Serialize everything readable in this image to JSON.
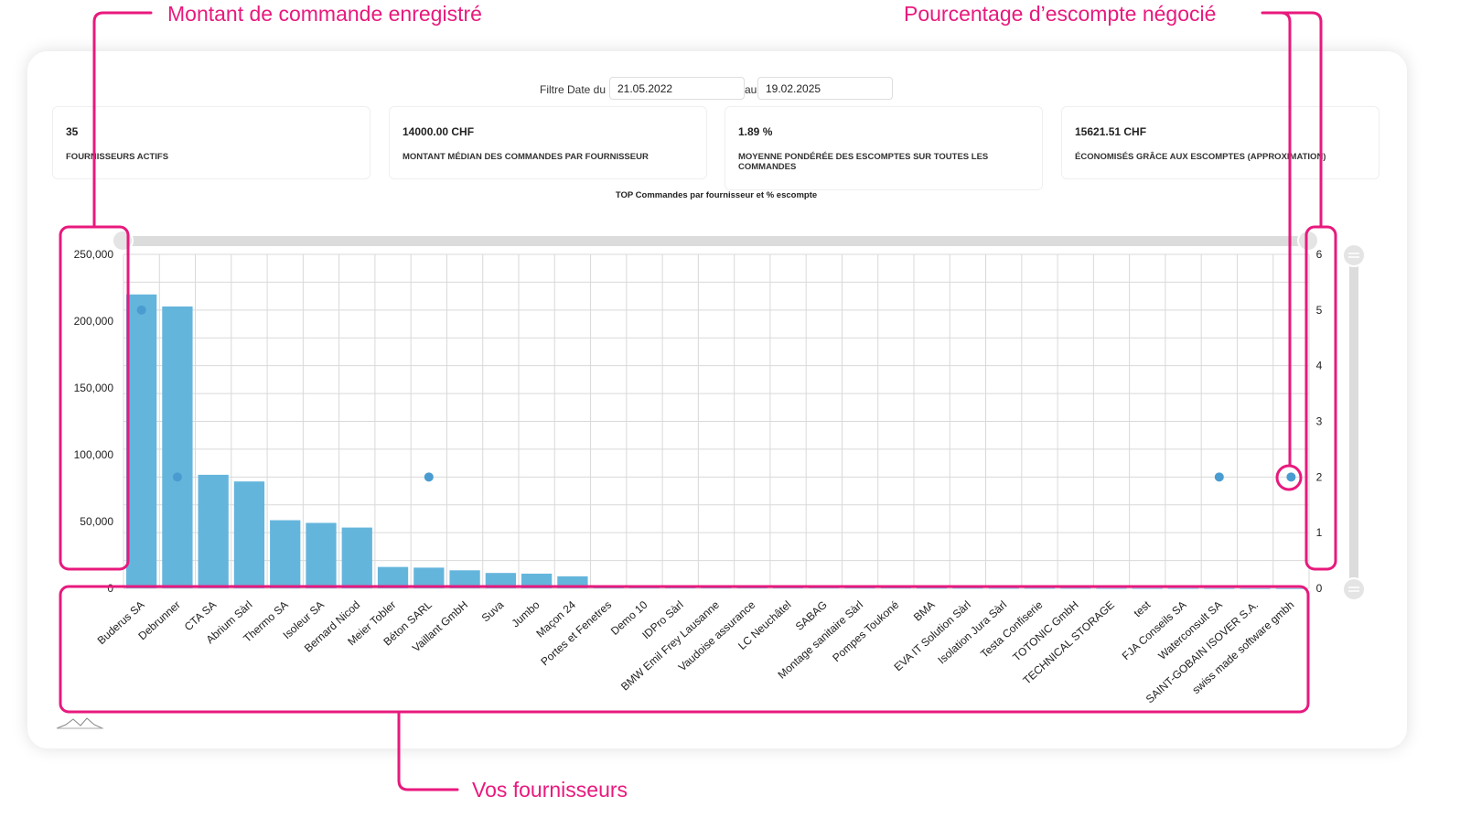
{
  "annotations": {
    "amount": "Montant de commande enregistré",
    "discount": "Pourcentage d’escompte négocié",
    "suppliers": "Vos fournisseurs"
  },
  "filter": {
    "label_from": "Filtre Date du",
    "date_from": "21.05.2022",
    "label_to": "au",
    "date_to": "19.02.2025"
  },
  "kpis": [
    {
      "value": "35",
      "label": "FOURNISSEURS ACTIFS"
    },
    {
      "value": "14000.00 CHF",
      "label": "MONTANT MÉDIAN DES COMMANDES PAR FOURNISSEUR"
    },
    {
      "value": "1.89 %",
      "label": "MOYENNE PONDÉRÉE DES ESCOMPTES SUR TOUTES LES COMMANDES"
    },
    {
      "value": "15621.51 CHF",
      "label": "ÉCONOMISÉS GRÂCE AUX ESCOMPTES (APPROXIMATION)"
    }
  ],
  "colors": {
    "accent": "#e8197d",
    "bar": "#64b5dc",
    "point": "#4a9cd0",
    "grid": "#d9d9d9",
    "slider": "#dcdcdc"
  },
  "chart_data": {
    "type": "bar",
    "title": "TOP Commandes par fournisseur et % escompte",
    "categories": [
      "Buderus SA",
      "Debrunner",
      "CTA SA",
      "Abrium Sàrl",
      "Thermo SA",
      "Isoleur SA",
      "Bernard Nicod",
      "Meier Tobler",
      "Béton SARL",
      "Vaillant GmbH",
      "Suva",
      "Jumbo",
      "Maçon 24",
      "Portes et Fenetres",
      "Demo 10",
      "IDPro Sàrl",
      "BMW Emil Frey Lausanne",
      "Vaudoise assurance",
      "LC Neuchâtel",
      "SABAG",
      "Montage sanitaire Sàrl",
      "Pompes Toukoné",
      "BMA",
      "EVA IT Solution Sàrl",
      "Isolation Jura Sàrl",
      "Testa Confiserie",
      "TOTONIC GmbH",
      "TECHNICAL STORAGE",
      "test",
      "FJA Conseils SA",
      "Waterconsult SA",
      "SAINT-GOBAIN ISOVER S.A.",
      "swiss made software gmbh"
    ],
    "series": [
      {
        "type": "bar",
        "axis": "left",
        "values": [
          220000,
          211000,
          85000,
          80000,
          51000,
          49000,
          45500,
          16000,
          15500,
          13500,
          11500,
          11000,
          9000,
          1500,
          1200,
          1000,
          900,
          800,
          700,
          600,
          500,
          500,
          400,
          400,
          300,
          300,
          300,
          200,
          200,
          200,
          150,
          100,
          100
        ]
      },
      {
        "type": "scatter",
        "axis": "right",
        "values": [
          5,
          2,
          null,
          null,
          null,
          null,
          null,
          null,
          2,
          null,
          null,
          null,
          null,
          null,
          null,
          null,
          null,
          null,
          null,
          null,
          null,
          null,
          null,
          null,
          null,
          null,
          null,
          null,
          null,
          null,
          2,
          null,
          2
        ]
      }
    ],
    "y_left": {
      "ticks": [
        "0",
        "50,000",
        "100,000",
        "150,000",
        "200,000",
        "250,000"
      ],
      "range": [
        0,
        250000
      ]
    },
    "y_right": {
      "ticks": [
        "0",
        "1",
        "2",
        "3",
        "4",
        "5",
        "6"
      ],
      "range": [
        0,
        6
      ]
    },
    "grid": true,
    "legend": "none"
  }
}
